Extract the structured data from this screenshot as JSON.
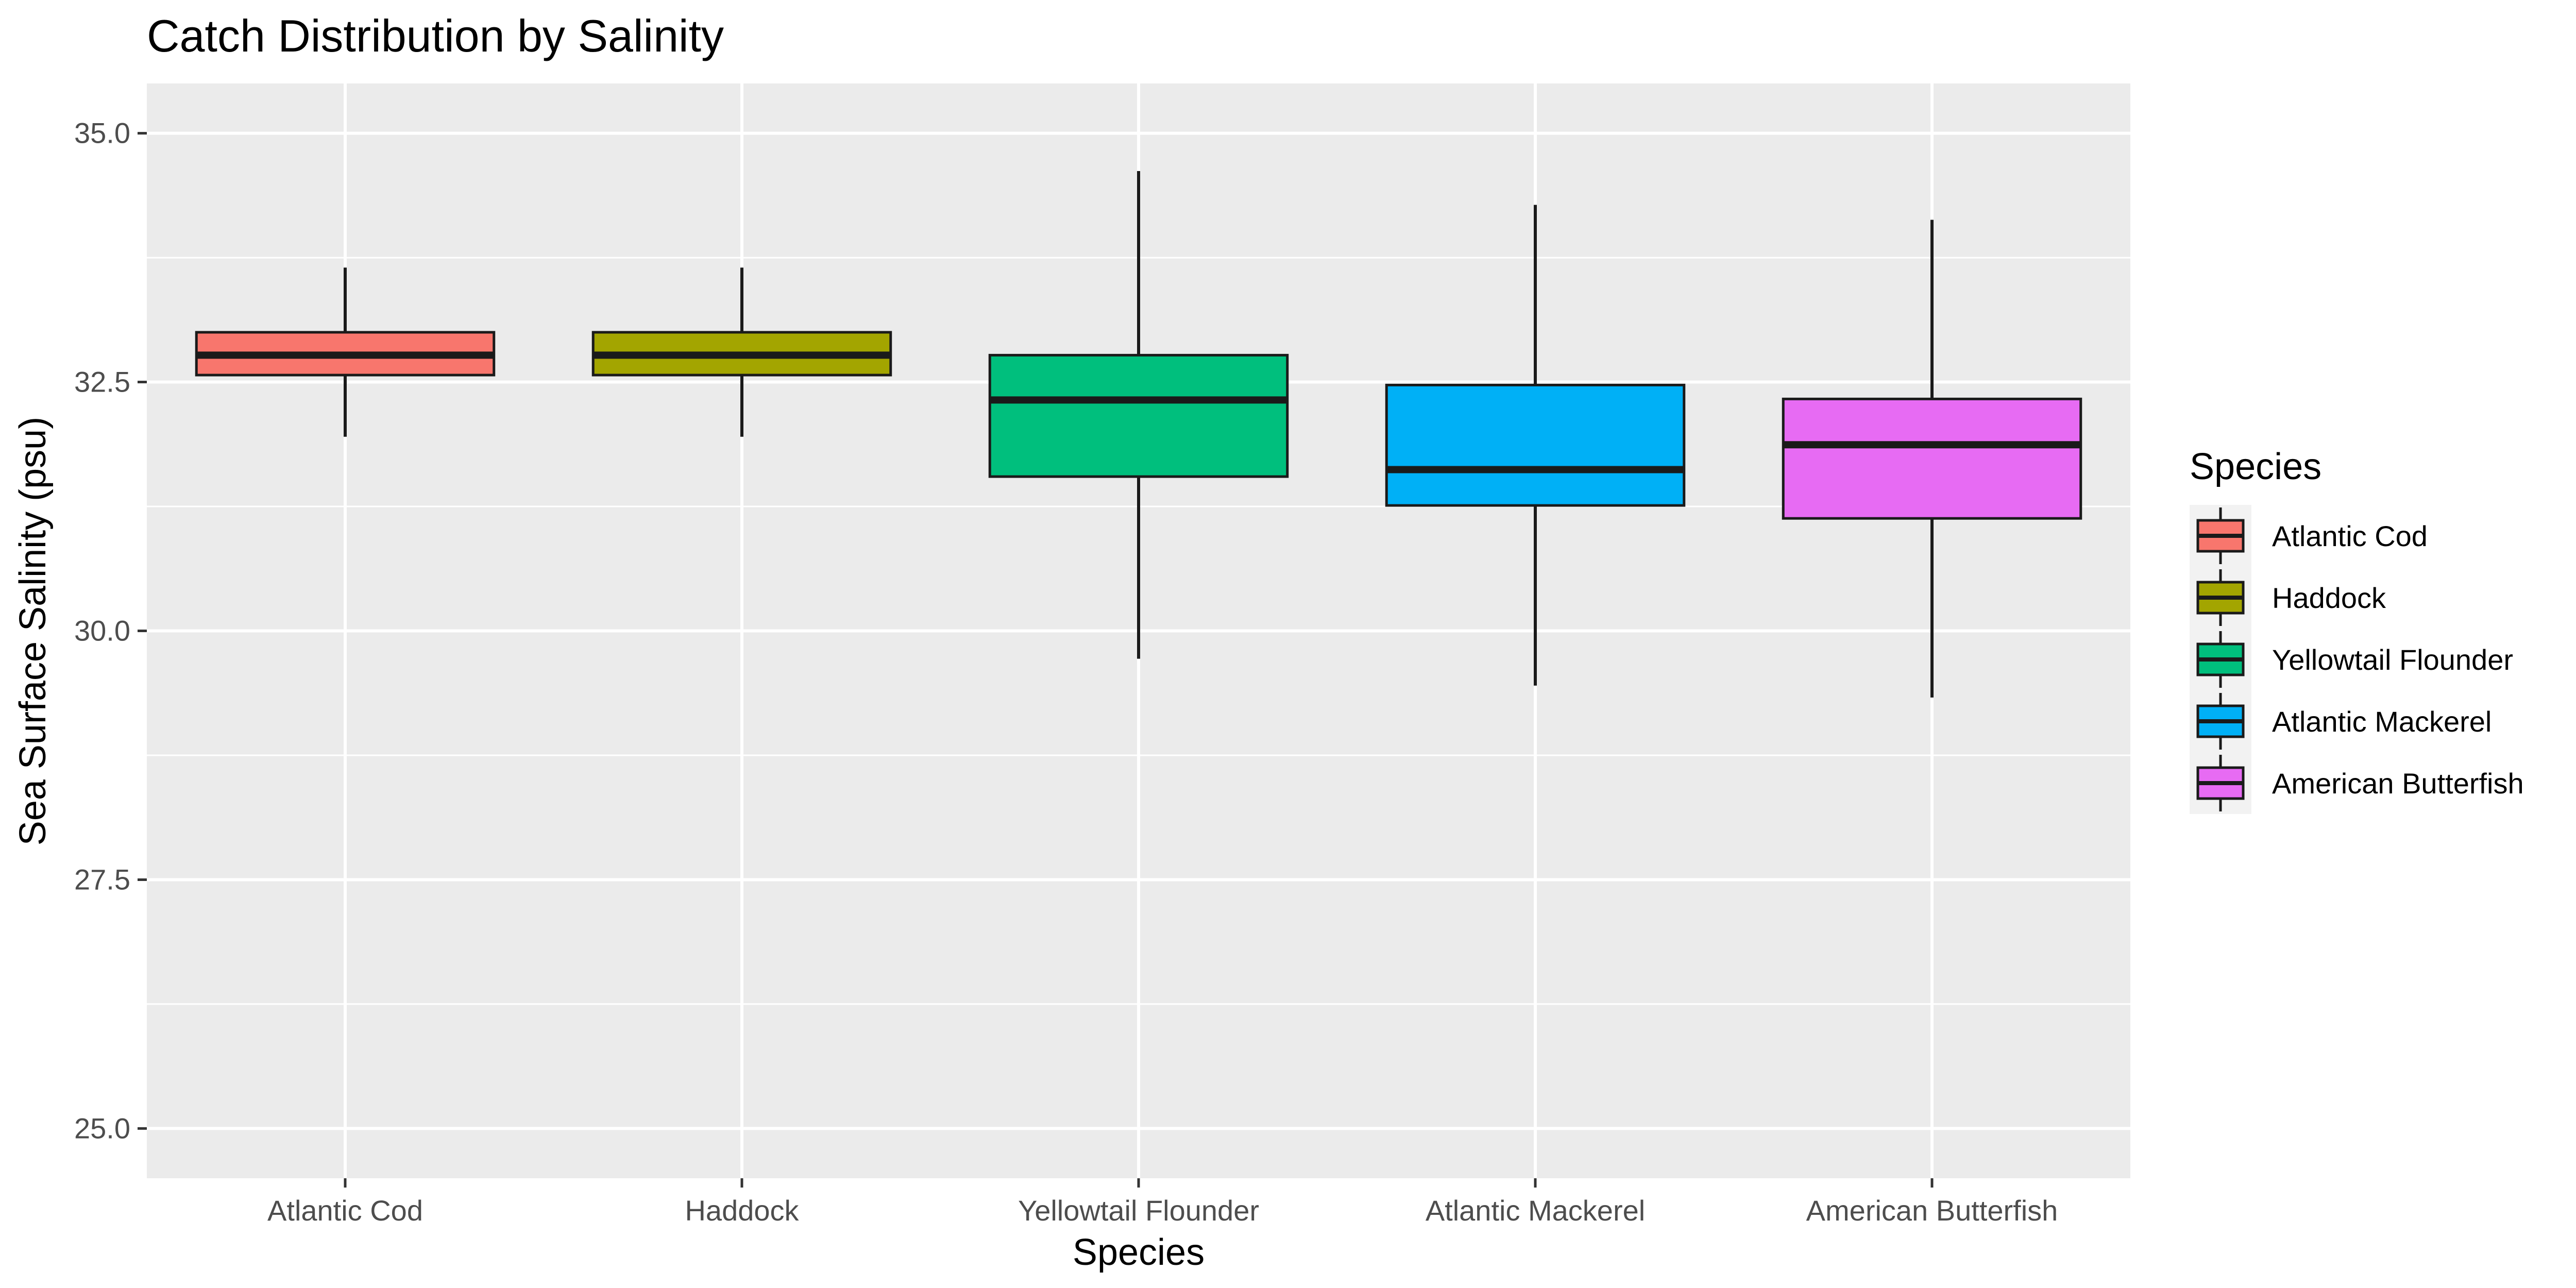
{
  "chart_data": {
    "type": "boxplot",
    "title": "Catch Distribution by Salinity",
    "xlabel": "Species",
    "ylabel": "Sea Surface Salinity (psu)",
    "ylim": [
      24.5,
      35.5
    ],
    "yticks": [
      "25.0",
      "27.5",
      "30.0",
      "32.5",
      "35.0"
    ],
    "ytick_values": [
      25.0,
      27.5,
      30.0,
      32.5,
      35.0
    ],
    "grid": true,
    "legend_title": "Species",
    "legend_position": "right",
    "categories": [
      "Atlantic Cod",
      "Haddock",
      "Yellowtail Flounder",
      "Atlantic Mackerel",
      "American Butterfish"
    ],
    "boxes": [
      {
        "category": "Atlantic Cod",
        "min": 31.95,
        "q1": 32.57,
        "median": 32.77,
        "q3": 33.0,
        "max": 33.65,
        "color": "#F8766D"
      },
      {
        "category": "Haddock",
        "min": 31.95,
        "q1": 32.57,
        "median": 32.77,
        "q3": 33.0,
        "max": 33.65,
        "color": "#A3A500"
      },
      {
        "category": "Yellowtail Flounder",
        "min": 29.72,
        "q1": 31.55,
        "median": 32.32,
        "q3": 32.77,
        "max": 34.62,
        "color": "#00BF7D"
      },
      {
        "category": "Atlantic Mackerel",
        "min": 29.45,
        "q1": 31.26,
        "median": 31.62,
        "q3": 32.47,
        "max": 34.28,
        "color": "#00B0F6"
      },
      {
        "category": "American Butterfish",
        "min": 29.33,
        "q1": 31.13,
        "median": 31.87,
        "q3": 32.33,
        "max": 34.13,
        "color": "#E76BF3"
      }
    ]
  }
}
